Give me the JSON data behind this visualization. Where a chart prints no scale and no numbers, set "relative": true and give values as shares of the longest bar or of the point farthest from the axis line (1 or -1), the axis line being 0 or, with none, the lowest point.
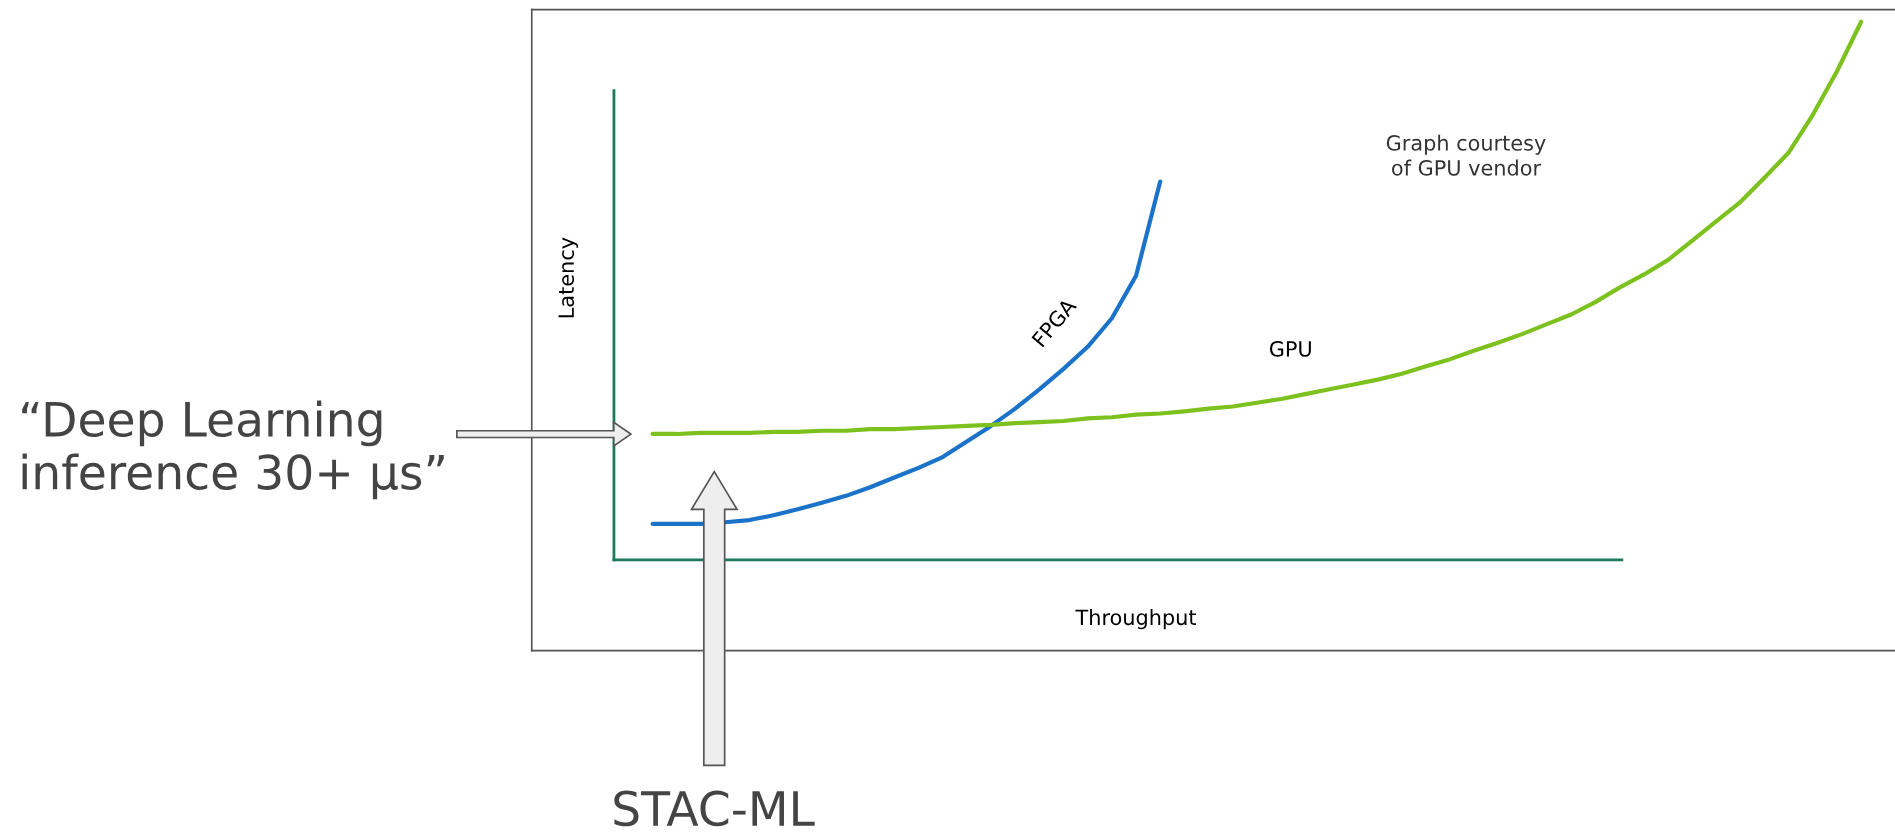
{
  "chart_data": {
    "type": "line",
    "relative": true,
    "xlabel": "Throughput",
    "ylabel": "Latency",
    "categories": [
      null,
      null,
      null,
      null,
      null,
      null,
      null,
      null,
      null,
      null,
      null,
      null,
      null,
      null,
      null,
      null,
      null,
      null,
      null,
      null,
      null,
      null,
      null,
      null,
      null,
      null,
      null,
      null,
      null,
      null,
      null,
      null,
      null,
      null,
      null,
      null,
      null,
      null,
      null,
      null,
      null,
      null,
      null,
      null,
      null,
      null,
      null,
      null,
      null,
      null,
      null
    ],
    "series": [
      {
        "name": "FPGA",
        "color": "#1a73c9",
        "values": [
          0.067,
          0.067,
          0.067,
          0.07,
          0.074,
          0.083,
          0.094,
          0.106,
          0.119,
          0.135,
          0.153,
          0.171,
          0.191,
          0.22,
          0.249,
          0.281,
          0.317,
          0.355,
          0.396,
          0.449,
          0.528,
          0.703,
          null,
          null,
          null,
          null,
          null,
          null,
          null,
          null,
          null,
          null,
          null,
          null,
          null,
          null,
          null,
          null,
          null,
          null,
          null,
          null,
          null,
          null,
          null,
          null,
          null,
          null,
          null,
          null,
          null
        ]
      },
      {
        "name": "GPU",
        "color": "#7dc11f",
        "values": [
          0.234,
          0.234,
          0.236,
          0.236,
          0.236,
          0.238,
          0.238,
          0.24,
          0.24,
          0.243,
          0.243,
          0.245,
          0.247,
          0.249,
          0.251,
          0.254,
          0.256,
          0.258,
          0.263,
          0.265,
          0.27,
          0.272,
          0.276,
          0.281,
          0.285,
          0.292,
          0.299,
          0.308,
          0.317,
          0.326,
          0.335,
          0.346,
          0.36,
          0.373,
          0.389,
          0.404,
          0.42,
          0.438,
          0.456,
          0.479,
          0.506,
          0.53,
          0.557,
          0.593,
          0.629,
          0.665,
          0.71,
          0.757,
          0.827,
          0.908,
          1.0
        ]
      }
    ],
    "annotations": [
      "Graph courtesy\nof GPU vendor",
      "“Deep Learning\ninference 30+ µs”",
      "STAC-ML"
    ]
  }
}
